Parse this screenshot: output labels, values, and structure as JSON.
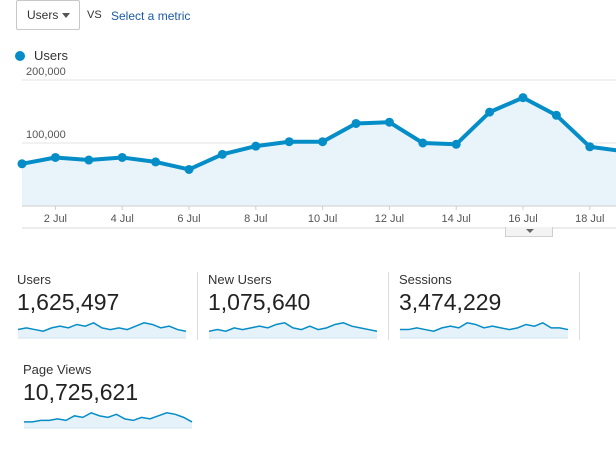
{
  "controls": {
    "metric_select": "Users",
    "vs_label": "VS",
    "select_metric_link": "Select a metric"
  },
  "legend": {
    "series_name": "Users",
    "color": "#058dc7"
  },
  "chart_data": {
    "type": "line",
    "series": [
      {
        "name": "Users",
        "values": [
          67000,
          77000,
          73000,
          77000,
          70000,
          58000,
          82000,
          95000,
          102000,
          102000,
          131000,
          133000,
          100000,
          98000,
          149000,
          172000,
          144000,
          94000,
          87000
        ]
      }
    ],
    "x": [
      "1 Jul",
      "2 Jul",
      "3 Jul",
      "4 Jul",
      "5 Jul",
      "6 Jul",
      "7 Jul",
      "8 Jul",
      "9 Jul",
      "10 Jul",
      "11 Jul",
      "12 Jul",
      "13 Jul",
      "14 Jul",
      "15 Jul",
      "16 Jul",
      "17 Jul",
      "18 Jul",
      "19 Jul"
    ],
    "x_tick_labels": [
      "2 Jul",
      "4 Jul",
      "6 Jul",
      "8 Jul",
      "10 Jul",
      "12 Jul",
      "14 Jul",
      "16 Jul",
      "18 Jul"
    ],
    "y_tick_labels": [
      "200,000",
      "100,000"
    ],
    "y_ticks": [
      200000,
      100000
    ],
    "ylim": [
      0,
      200000
    ],
    "grid": true,
    "color": "#058dc7",
    "fill_color": "#e8f4fa"
  },
  "scorecards": [
    {
      "name": "Users",
      "value": "1,625,497",
      "spark": [
        5,
        6,
        5,
        4,
        6,
        7,
        6,
        8,
        7,
        9,
        6,
        5,
        6,
        5,
        7,
        9,
        8,
        6,
        7,
        5,
        4
      ]
    },
    {
      "name": "New Users",
      "value": "1,075,640",
      "spark": [
        4,
        5,
        4,
        6,
        5,
        6,
        7,
        6,
        8,
        9,
        6,
        5,
        7,
        5,
        6,
        8,
        9,
        7,
        6,
        5,
        4
      ]
    },
    {
      "name": "Sessions",
      "value": "3,474,229",
      "spark": [
        5,
        5,
        6,
        5,
        4,
        6,
        7,
        6,
        9,
        8,
        6,
        7,
        6,
        5,
        6,
        8,
        7,
        9,
        6,
        6,
        5
      ]
    },
    {
      "name": "Page Views",
      "value": "10,725,621",
      "spark": [
        4,
        4,
        5,
        5,
        6,
        5,
        8,
        7,
        10,
        8,
        7,
        9,
        6,
        5,
        7,
        6,
        8,
        10,
        9,
        7,
        4
      ]
    }
  ]
}
